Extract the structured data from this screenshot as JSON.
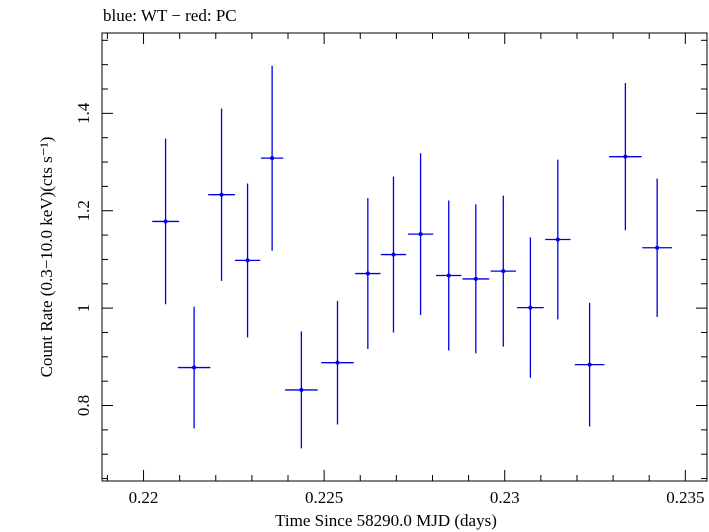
{
  "chart_data": {
    "type": "scatter",
    "title": "blue: WT − red: PC",
    "xlabel": "Time Since 58290.0 MJD (days)",
    "ylabel": "Count Rate (0.3−10.0 keV)(cts s⁻¹)",
    "xlim": [
      0.21885,
      0.2356
    ],
    "ylim": [
      0.645,
      1.565
    ],
    "xticks": [
      0.22,
      0.225,
      0.23,
      0.235
    ],
    "xtick_labels": [
      "0.22",
      "0.225",
      "0.23",
      "0.235"
    ],
    "yticks": [
      0.8,
      1.0,
      1.2,
      1.4
    ],
    "ytick_labels": [
      "0.8",
      "1",
      "1.2",
      "1.4"
    ],
    "grid": false,
    "series": [
      {
        "name": "WT",
        "color": "#0000e6",
        "points": [
          {
            "x": 0.22061,
            "y": 1.178,
            "xerr": 0.00037,
            "yerr_low": 0.17,
            "yerr_high": 0.17
          },
          {
            "x": 0.2214,
            "y": 0.878,
            "xerr": 0.00045,
            "yerr_low": 0.125,
            "yerr_high": 0.125
          },
          {
            "x": 0.22216,
            "y": 1.233,
            "xerr": 0.00037,
            "yerr_low": 0.177,
            "yerr_high": 0.177
          },
          {
            "x": 0.22288,
            "y": 1.098,
            "xerr": 0.00035,
            "yerr_low": 0.158,
            "yerr_high": 0.158
          },
          {
            "x": 0.22356,
            "y": 1.308,
            "xerr": 0.00031,
            "yerr_low": 0.19,
            "yerr_high": 0.19
          },
          {
            "x": 0.22437,
            "y": 0.832,
            "xerr": 0.00045,
            "yerr_low": 0.12,
            "yerr_high": 0.12
          },
          {
            "x": 0.22537,
            "y": 0.888,
            "xerr": 0.00045,
            "yerr_low": 0.127,
            "yerr_high": 0.127
          },
          {
            "x": 0.22621,
            "y": 1.071,
            "xerr": 0.00035,
            "yerr_low": 0.155,
            "yerr_high": 0.155
          },
          {
            "x": 0.22692,
            "y": 1.11,
            "xerr": 0.00035,
            "yerr_low": 0.16,
            "yerr_high": 0.16
          },
          {
            "x": 0.22767,
            "y": 1.152,
            "xerr": 0.00035,
            "yerr_low": 0.166,
            "yerr_high": 0.166
          },
          {
            "x": 0.22845,
            "y": 1.067,
            "xerr": 0.00035,
            "yerr_low": 0.154,
            "yerr_high": 0.154
          },
          {
            "x": 0.2292,
            "y": 1.06,
            "xerr": 0.00037,
            "yerr_low": 0.153,
            "yerr_high": 0.153
          },
          {
            "x": 0.22996,
            "y": 1.076,
            "xerr": 0.00035,
            "yerr_low": 0.155,
            "yerr_high": 0.155
          },
          {
            "x": 0.23071,
            "y": 1.001,
            "xerr": 0.00037,
            "yerr_low": 0.144,
            "yerr_high": 0.144
          },
          {
            "x": 0.23147,
            "y": 1.141,
            "xerr": 0.00035,
            "yerr_low": 0.164,
            "yerr_high": 0.164
          },
          {
            "x": 0.23235,
            "y": 0.884,
            "xerr": 0.00041,
            "yerr_low": 0.127,
            "yerr_high": 0.127
          },
          {
            "x": 0.23334,
            "y": 1.311,
            "xerr": 0.00045,
            "yerr_low": 0.151,
            "yerr_high": 0.151
          },
          {
            "x": 0.23422,
            "y": 1.124,
            "xerr": 0.00041,
            "yerr_low": 0.142,
            "yerr_high": 0.142
          }
        ]
      }
    ]
  }
}
